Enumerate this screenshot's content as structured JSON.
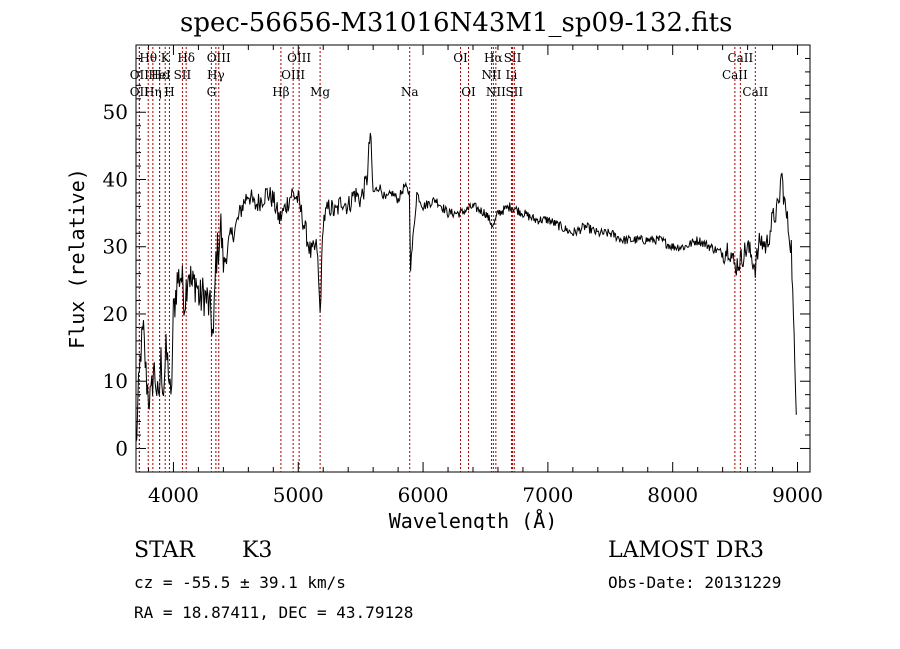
{
  "chart_data": {
    "type": "line",
    "title": "spec-56656-M31016N43M1_sp09-132.fits",
    "xlabel": "Wavelength (Å)",
    "ylabel": "Flux (relative)",
    "xlim": [
      3700,
      9100
    ],
    "ylim": [
      -3.5,
      60
    ],
    "xticks": [
      4000,
      5000,
      6000,
      7000,
      8000,
      9000
    ],
    "yticks": [
      0,
      10,
      20,
      30,
      40,
      50
    ],
    "xtick_labels": [
      "4000",
      "5000",
      "6000",
      "7000",
      "8000",
      "9000"
    ],
    "ytick_labels": [
      "0",
      "10",
      "20",
      "30",
      "40",
      "50"
    ],
    "line_color": "#000000",
    "marker_color": "#aa0000",
    "series": [
      {
        "name": "spectrum",
        "x": [
          3700,
          3720,
          3740,
          3760,
          3780,
          3800,
          3820,
          3840,
          3860,
          3880,
          3900,
          3920,
          3940,
          3960,
          3980,
          4000,
          4030,
          4060,
          4090,
          4120,
          4150,
          4180,
          4210,
          4240,
          4270,
          4300,
          4320,
          4340,
          4360,
          4380,
          4400,
          4450,
          4500,
          4550,
          4600,
          4650,
          4700,
          4750,
          4800,
          4850,
          4900,
          4950,
          5000,
          5050,
          5100,
          5150,
          5175,
          5200,
          5250,
          5300,
          5350,
          5400,
          5450,
          5500,
          5550,
          5577,
          5600,
          5650,
          5700,
          5750,
          5800,
          5850,
          5890,
          5900,
          5950,
          6000,
          6100,
          6200,
          6300,
          6400,
          6500,
          6563,
          6600,
          6700,
          6800,
          6900,
          7000,
          7100,
          7200,
          7300,
          7400,
          7500,
          7600,
          7700,
          7800,
          7900,
          8000,
          8100,
          8200,
          8300,
          8400,
          8450,
          8498,
          8542,
          8600,
          8662,
          8700,
          8750,
          8800,
          8850,
          8870,
          8900,
          8950,
          8990
        ],
        "y": [
          0,
          8,
          15,
          17,
          11,
          8,
          7,
          12,
          10,
          6,
          13,
          9,
          14,
          12,
          6,
          20,
          25,
          26,
          22,
          27,
          24,
          25,
          22,
          23,
          22,
          20,
          16,
          28,
          30,
          33,
          27,
          31,
          33,
          36,
          38,
          36,
          37,
          38,
          37,
          34,
          36,
          38,
          37,
          33,
          29,
          30,
          20,
          34,
          36,
          35,
          37,
          36,
          38,
          37,
          40,
          47,
          38,
          39,
          37,
          38,
          37,
          39,
          38,
          27,
          38,
          36,
          37,
          35,
          35,
          36,
          35,
          33,
          35,
          36,
          35,
          34,
          34,
          33,
          32,
          33,
          32,
          32,
          31,
          31,
          31,
          31,
          30,
          30,
          31,
          30,
          29,
          30,
          27,
          28,
          30,
          27,
          31,
          30,
          34,
          36,
          41,
          36,
          30,
          5
        ]
      }
    ],
    "markers_level1": [
      {
        "name": "Hθ",
        "x": 3798
      },
      {
        "name": "K",
        "x": 3934
      },
      {
        "name": "Hδ",
        "x": 4102
      },
      {
        "name": "OIII",
        "x": 4363
      },
      {
        "name": "OIII",
        "x": 5007
      },
      {
        "name": "OI",
        "x": 6300
      },
      {
        "name": "Hα",
        "x": 6563
      },
      {
        "name": "SII",
        "x": 6717
      },
      {
        "name": "CaII",
        "x": 8542
      }
    ],
    "markers_level2": [
      {
        "name": "OII",
        "x": 3727
      },
      {
        "name": "Hε",
        "x": 3889
      },
      {
        "name": "HeI",
        "x": 3889
      },
      {
        "name": "SII",
        "x": 4072
      },
      {
        "name": "Hγ",
        "x": 4340
      },
      {
        "name": "OIII",
        "x": 4959
      },
      {
        "name": "NII",
        "x": 6548
      },
      {
        "name": "Li",
        "x": 6708
      },
      {
        "name": "CaII",
        "x": 8498
      }
    ],
    "markers_level3": [
      {
        "name": "OII",
        "x": 3727
      },
      {
        "name": "Hη",
        "x": 3835
      },
      {
        "name": "H",
        "x": 3968
      },
      {
        "name": "G",
        "x": 4304
      },
      {
        "name": "Hβ",
        "x": 4861
      },
      {
        "name": "Mg",
        "x": 5175
      },
      {
        "name": "Na",
        "x": 5893
      },
      {
        "name": "OI",
        "x": 6364
      },
      {
        "name": "NII",
        "x": 6583
      },
      {
        "name": "SII",
        "x": 6731
      },
      {
        "name": "CaII",
        "x": 8662
      }
    ]
  },
  "info": {
    "class": "STAR",
    "subclass": "K3",
    "survey": "LAMOST DR3",
    "redshift": "cz = -55.5 ± 39.1 km/s",
    "obs_date": "Obs-Date: 20131229",
    "coords": "RA =  18.87411, DEC =  43.79128"
  }
}
